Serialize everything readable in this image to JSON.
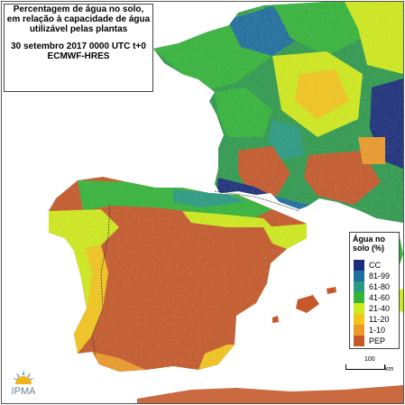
{
  "title": {
    "line1": "Percentagem de água no solo,",
    "line2": "em relação à capacidade de água",
    "line3": "utilizável pelas plantas",
    "line4": "30 setembro 2017 0000 UTC t+0",
    "line5": "ECMWF-HRES"
  },
  "legend": {
    "title_line1": "Água no",
    "title_line2": "solo (%)",
    "items": [
      {
        "label": "CC",
        "color": "#1c2f7a"
      },
      {
        "label": "81-99",
        "color": "#1f6e9e"
      },
      {
        "label": "61-80",
        "color": "#2a9a82"
      },
      {
        "label": "41-60",
        "color": "#35b43a"
      },
      {
        "label": "21-40",
        "color": "#cfea1c"
      },
      {
        "label": "11-20",
        "color": "#f2c51d"
      },
      {
        "label": "1-10",
        "color": "#eb9a2a"
      },
      {
        "label": "PEP",
        "color": "#c5592b"
      }
    ]
  },
  "scale": {
    "value": "100",
    "unit": "km"
  },
  "logo": {
    "text": "IPMA",
    "icon": "ipma-sun-icon"
  }
}
